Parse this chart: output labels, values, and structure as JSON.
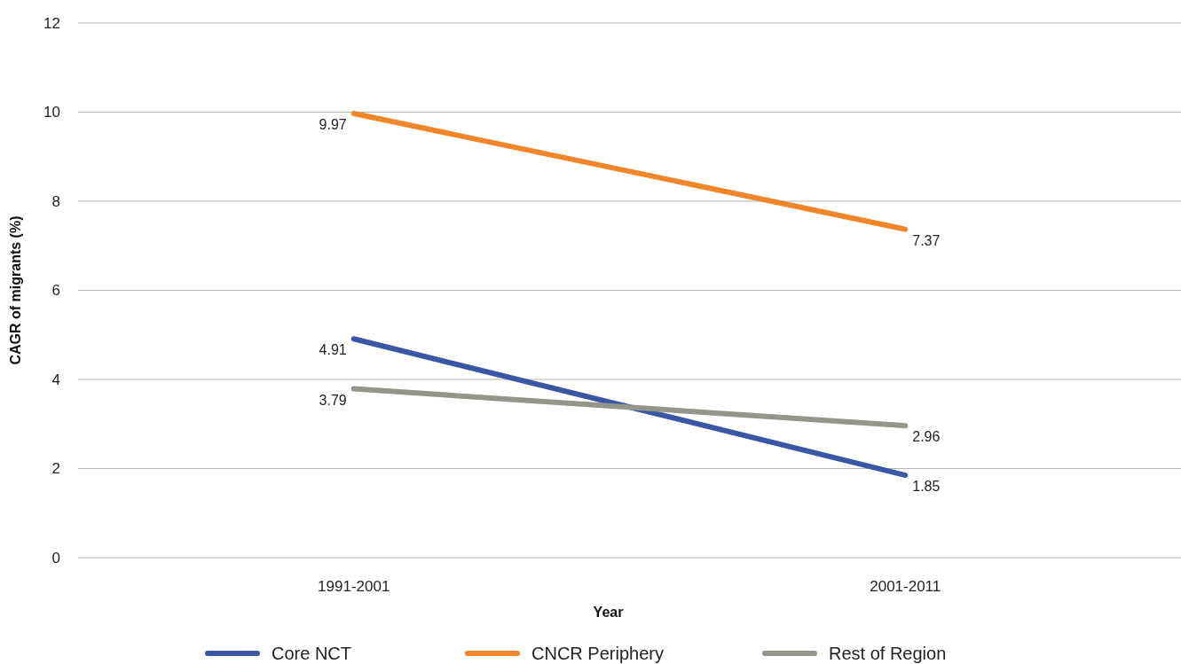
{
  "chart_data": {
    "type": "line",
    "xlabel": "Year",
    "ylabel": "CAGR of migrants (%)",
    "categories": [
      "1991-2001",
      "2001-2011"
    ],
    "series": [
      {
        "name": "Core NCT",
        "color": "#3a56a5",
        "values": [
          4.91,
          1.85
        ]
      },
      {
        "name": "CNCR Periphery",
        "color": "#f0862a",
        "values": [
          9.97,
          7.37
        ]
      },
      {
        "name": "Rest of Region",
        "color": "#94958b",
        "values": [
          3.79,
          2.96
        ]
      }
    ],
    "ylim": [
      0,
      12
    ],
    "yticks": [
      0,
      2,
      4,
      6,
      8,
      10,
      12
    ],
    "grid": "y",
    "legend": "bottom",
    "data_labels": true,
    "marker": "none",
    "line_style": "solid"
  }
}
